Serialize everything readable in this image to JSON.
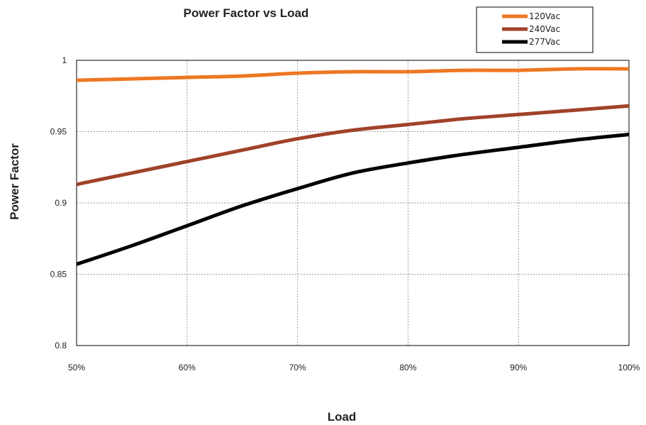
{
  "chart_data": {
    "type": "line",
    "title": "Power Factor vs Load",
    "xlabel": "Load",
    "ylabel": "Power Factor",
    "x": [
      50,
      55,
      60,
      65,
      70,
      75,
      80,
      85,
      90,
      95,
      100
    ],
    "x_tick_labels": [
      "50%",
      "60%",
      "70%",
      "80%",
      "90%",
      "100%"
    ],
    "x_ticks": [
      50,
      60,
      70,
      80,
      90,
      100
    ],
    "y_tick_labels": [
      "0.8",
      "0.85",
      "0.9",
      "0.95",
      "1"
    ],
    "y_ticks": [
      0.8,
      0.85,
      0.9,
      0.95,
      1.0
    ],
    "xlim": [
      50,
      100
    ],
    "ylim": [
      0.8,
      1.0
    ],
    "grid": true,
    "legend_position": "top-right",
    "series": [
      {
        "name": "120Vac",
        "color": "#ee7722",
        "values": [
          0.986,
          0.987,
          0.988,
          0.989,
          0.991,
          0.992,
          0.992,
          0.993,
          0.993,
          0.994,
          0.994
        ]
      },
      {
        "name": "240Vac",
        "color": "#a0422a",
        "values": [
          0.913,
          0.921,
          0.929,
          0.937,
          0.945,
          0.951,
          0.955,
          0.959,
          0.962,
          0.965,
          0.968
        ]
      },
      {
        "name": "277Vac",
        "color": "#000000",
        "values": [
          0.857,
          0.87,
          0.884,
          0.898,
          0.91,
          0.921,
          0.928,
          0.934,
          0.939,
          0.944,
          0.948
        ]
      }
    ]
  }
}
